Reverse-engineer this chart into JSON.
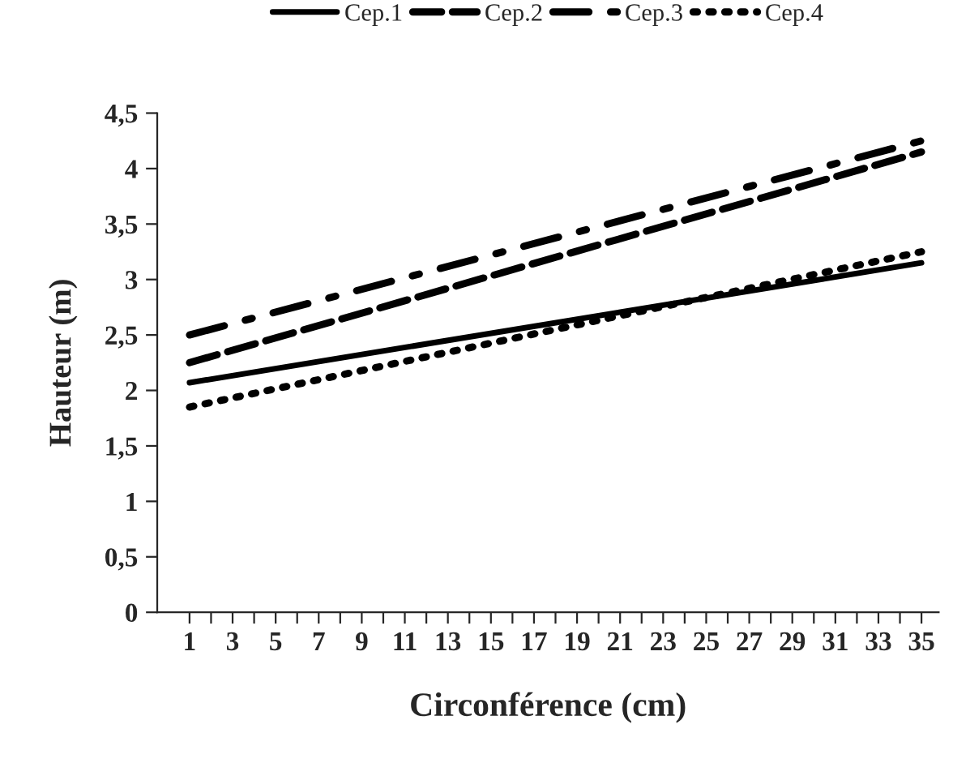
{
  "chart_data": {
    "type": "line",
    "xlabel": "Circonférence (cm)",
    "ylabel": "Hauteur (m)",
    "x": [
      1,
      35
    ],
    "series": [
      {
        "name": "Cep.1",
        "color": "#000000",
        "values": [
          2.07,
          3.15
        ],
        "line_style": "solid"
      },
      {
        "name": "Cep.2",
        "color": "#000000",
        "values": [
          2.25,
          4.15
        ],
        "line_style": "dashed"
      },
      {
        "name": "Cep.3",
        "color": "#000000",
        "values": [
          2.5,
          4.25
        ],
        "line_style": "dashdot"
      },
      {
        "name": "Cep.4",
        "color": "#000000",
        "values": [
          1.85,
          3.25
        ],
        "line_style": "dotted"
      }
    ],
    "xlim": [
      -0.5,
      35.8
    ],
    "xticks": [
      1,
      {
        "value": 2,
        "label": null
      },
      3,
      {
        "value": 4,
        "label": null
      },
      5,
      {
        "value": 6,
        "label": null
      },
      7,
      {
        "value": 8,
        "label": null
      },
      9,
      {
        "value": 10,
        "label": null
      },
      11,
      {
        "value": 12,
        "label": null
      },
      13,
      {
        "value": 14,
        "label": null
      },
      15,
      {
        "value": 16,
        "label": null
      },
      17,
      {
        "value": 18,
        "label": null
      },
      19,
      {
        "value": 20,
        "label": null
      },
      21,
      {
        "value": 22,
        "label": null
      },
      23,
      {
        "value": 24,
        "label": null
      },
      25,
      {
        "value": 26,
        "label": null
      },
      27,
      {
        "value": 28,
        "label": null
      },
      29,
      {
        "value": 30,
        "label": null
      },
      31,
      {
        "value": 32,
        "label": null
      },
      33,
      {
        "value": 34,
        "label": null
      },
      35
    ],
    "ylim": [
      0,
      4.5
    ],
    "yticks": [
      0,
      {
        "value": 0.5,
        "label": "0,5"
      },
      1,
      {
        "value": 1.5,
        "label": "1,5"
      },
      2,
      {
        "value": 2.5,
        "label": "2,5"
      },
      3,
      {
        "value": 3.5,
        "label": "3,5"
      },
      4,
      {
        "value": 4.5,
        "label": "4,5"
      }
    ],
    "grid": false,
    "legend": "top"
  }
}
